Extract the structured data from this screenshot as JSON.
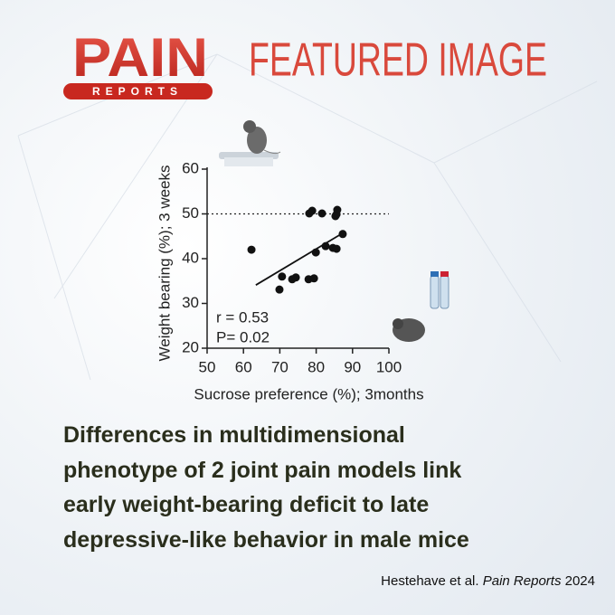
{
  "logo": {
    "name": "PAIN",
    "subtitle": "REPORTS"
  },
  "header": {
    "title": "FEATURED IMAGE"
  },
  "headline": [
    "Differences in multidimensional",
    "phenotype of 2 joint pain models link",
    "early weight-bearing deficit to late",
    "depressive-like behavior in male mice"
  ],
  "citation": {
    "authors": "Hestehave et al. ",
    "journal": "Pain Reports",
    "year": " 2024"
  },
  "chart_data": {
    "type": "scatter",
    "x_label": "Sucrose preference (%); 3months",
    "y_label": "Weight bearing (%); 3 weeks",
    "x": [
      62.2,
      78.1,
      78.9,
      81.6,
      85.6,
      85.8,
      85.3,
      87.3,
      79.9,
      82.6,
      84.6,
      85.6,
      70.6,
      73.4,
      74.4,
      69.9,
      77.9,
      79.4
    ],
    "y": [
      42.0,
      50.1,
      50.7,
      50.1,
      49.9,
      50.9,
      49.5,
      45.5,
      41.4,
      42.8,
      42.4,
      42.2,
      36.0,
      35.4,
      35.8,
      33.1,
      35.4,
      35.6
    ],
    "color": "#111111",
    "trend_line": {
      "x": [
        63.4,
        87.3
      ],
      "y": [
        34.1,
        45.7
      ]
    },
    "reference_line": 50,
    "annotations": [
      "r = 0.53",
      "P= 0.02"
    ],
    "xlim": [
      50,
      100
    ],
    "xticks": [
      50,
      60,
      70,
      80,
      90,
      100
    ],
    "ylim": [
      20,
      60
    ],
    "yticks": [
      20,
      30,
      40,
      50,
      60
    ]
  }
}
